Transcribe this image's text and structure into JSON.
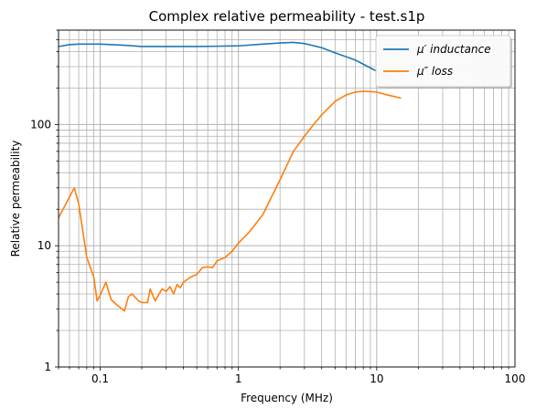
{
  "chart_data": {
    "type": "line",
    "title": "Complex relative permeability - test.s1p",
    "xlabel": "Frequency (MHz)",
    "ylabel": "Relative permeability",
    "x_scale": "log",
    "y_scale": "log",
    "xlim": [
      0.05,
      100
    ],
    "ylim": [
      1,
      600
    ],
    "x_ticks": [
      {
        "value": 0.1,
        "label": "0.1"
      },
      {
        "value": 1,
        "label": "1"
      },
      {
        "value": 10,
        "label": "10"
      },
      {
        "value": 100,
        "label": "100"
      }
    ],
    "y_ticks": [
      {
        "value": 1,
        "label": "1"
      },
      {
        "value": 10,
        "label": "10"
      },
      {
        "value": 100,
        "label": "100"
      }
    ],
    "grid": true,
    "legend_position": "top-right",
    "series": [
      {
        "name": "μ′ inductance",
        "color": "#1f77b4",
        "points": [
          [
            0.05,
            440
          ],
          [
            0.06,
            455
          ],
          [
            0.07,
            460
          ],
          [
            0.1,
            460
          ],
          [
            0.15,
            450
          ],
          [
            0.2,
            440
          ],
          [
            0.3,
            440
          ],
          [
            0.5,
            440
          ],
          [
            0.7,
            442
          ],
          [
            1.0,
            445
          ],
          [
            1.5,
            460
          ],
          [
            2.0,
            470
          ],
          [
            2.5,
            475
          ],
          [
            3.0,
            465
          ],
          [
            4.0,
            430
          ],
          [
            5.0,
            390
          ],
          [
            7.0,
            340
          ],
          [
            10.0,
            275
          ],
          [
            15.0,
            220
          ]
        ]
      },
      {
        "name": "μ″ loss",
        "color": "#ff7f0e",
        "points": [
          [
            0.05,
            17
          ],
          [
            0.065,
            30
          ],
          [
            0.07,
            22
          ],
          [
            0.08,
            8
          ],
          [
            0.09,
            5.5
          ],
          [
            0.095,
            3.5
          ],
          [
            0.1,
            3.9
          ],
          [
            0.11,
            5.0
          ],
          [
            0.12,
            3.6
          ],
          [
            0.13,
            3.3
          ],
          [
            0.15,
            2.9
          ],
          [
            0.16,
            3.8
          ],
          [
            0.17,
            4.0
          ],
          [
            0.19,
            3.5
          ],
          [
            0.2,
            3.4
          ],
          [
            0.22,
            3.4
          ],
          [
            0.23,
            4.4
          ],
          [
            0.25,
            3.5
          ],
          [
            0.28,
            4.4
          ],
          [
            0.3,
            4.2
          ],
          [
            0.32,
            4.6
          ],
          [
            0.34,
            4.0
          ],
          [
            0.36,
            4.8
          ],
          [
            0.38,
            4.5
          ],
          [
            0.4,
            5.0
          ],
          [
            0.45,
            5.5
          ],
          [
            0.5,
            5.8
          ],
          [
            0.55,
            6.6
          ],
          [
            0.6,
            6.7
          ],
          [
            0.65,
            6.6
          ],
          [
            0.7,
            7.5
          ],
          [
            0.8,
            8.0
          ],
          [
            0.9,
            9.0
          ],
          [
            1.0,
            10.5
          ],
          [
            1.2,
            13
          ],
          [
            1.5,
            18
          ],
          [
            2.0,
            35
          ],
          [
            2.5,
            60
          ],
          [
            3.0,
            80
          ],
          [
            3.5,
            100
          ],
          [
            4.0,
            120
          ],
          [
            5.0,
            155
          ],
          [
            6.0,
            175
          ],
          [
            7.0,
            185
          ],
          [
            8.0,
            188
          ],
          [
            10.0,
            185
          ],
          [
            12.0,
            175
          ],
          [
            15.0,
            165
          ]
        ]
      }
    ]
  }
}
